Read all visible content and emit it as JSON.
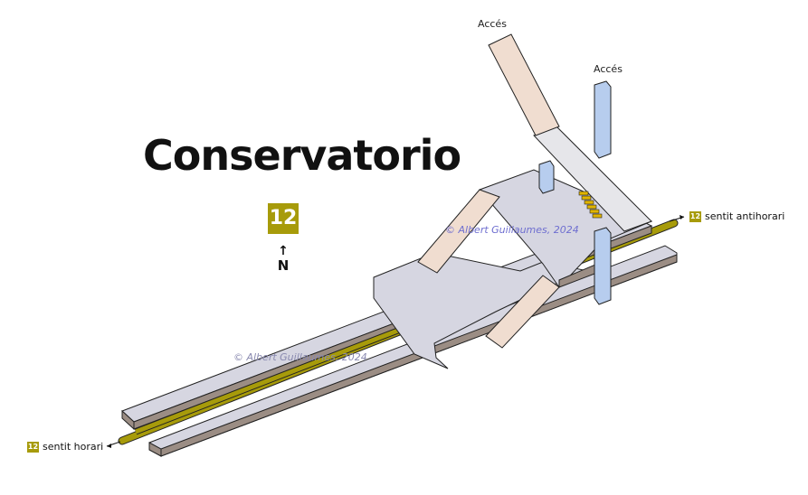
{
  "station": {
    "name": "Conservatorio",
    "line": "12"
  },
  "compass": {
    "arrow": "↑",
    "label": "N"
  },
  "access": [
    {
      "label": "Accés"
    },
    {
      "label": "Accés"
    }
  ],
  "directions": {
    "counterclockwise": {
      "line": "12",
      "label": "sentit antihorari"
    },
    "clockwise": {
      "line": "12",
      "label": "sentit horari"
    }
  },
  "watermarks": [
    "© Albert Guillaumes, 2024",
    "© Albert Guillaumes, 2024"
  ],
  "colors": {
    "line12": "#a79b0a",
    "platform": "#d6d6e1",
    "stairs": "#f0ddd0",
    "elevator": "#b7cdee",
    "escalator": "#e0b400",
    "watermark_top": "#6f6fd0",
    "watermark_bottom": "#8a8ab0"
  }
}
